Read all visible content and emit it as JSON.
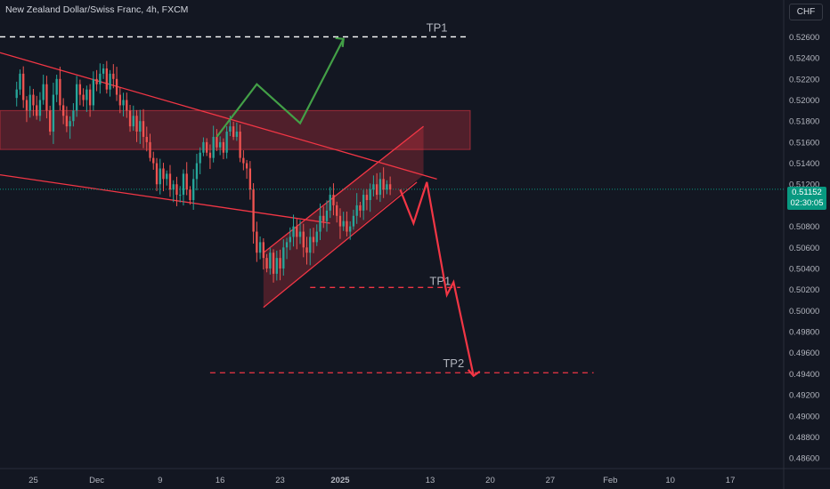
{
  "header": {
    "title": "New Zealand Dollar/Swiss Franc, 4h, FXCM",
    "currency": "CHF"
  },
  "last_price": {
    "value": "0.51152",
    "countdown": "02:30:05"
  },
  "colors": {
    "background": "#131722",
    "up_candle": "#26a69a",
    "down_candle": "#ef5350",
    "annotation_red": "#f23645",
    "annotation_green": "#43a047",
    "last_price_bg": "#089981"
  },
  "chart_data": {
    "type": "candlestick",
    "title": "New Zealand Dollar/Swiss Franc, 4h, FXCM",
    "ylabel": "CHF",
    "ylim": [
      0.485,
      0.5295
    ],
    "y_ticks": [
      "0.52800",
      "0.52600",
      "0.52400",
      "0.52200",
      "0.52000",
      "0.51800",
      "0.51600",
      "0.51400",
      "0.51200",
      "0.51000",
      "0.50800",
      "0.50600",
      "0.50400",
      "0.50200",
      "0.50000",
      "0.49800",
      "0.49600",
      "0.49400",
      "0.49200",
      "0.49000",
      "0.48800",
      "0.48600"
    ],
    "x_ticks": [
      {
        "label": "25",
        "bold": false,
        "idx": 5
      },
      {
        "label": "Dec",
        "bold": false,
        "idx": 24
      },
      {
        "label": "9",
        "bold": false,
        "idx": 43
      },
      {
        "label": "16",
        "bold": false,
        "idx": 61
      },
      {
        "label": "23",
        "bold": false,
        "idx": 79
      },
      {
        "label": "2025",
        "bold": true,
        "idx": 97
      },
      {
        "label": "13",
        "bold": false,
        "idx": 124
      },
      {
        "label": "20",
        "bold": false,
        "idx": 142
      },
      {
        "label": "27",
        "bold": false,
        "idx": 160
      },
      {
        "label": "Feb",
        "bold": false,
        "idx": 178
      },
      {
        "label": "10",
        "bold": false,
        "idx": 196
      },
      {
        "label": "17",
        "bold": false,
        "idx": 214
      }
    ],
    "x_range": [
      -5,
      230
    ],
    "close_series": [
      0.521,
      0.5225,
      0.52,
      0.519,
      0.5205,
      0.5195,
      0.5185,
      0.52,
      0.5215,
      0.519,
      0.517,
      0.5205,
      0.522,
      0.5195,
      0.5185,
      0.5175,
      0.518,
      0.519,
      0.5215,
      0.5205,
      0.52,
      0.521,
      0.5195,
      0.522,
      0.5215,
      0.5225,
      0.523,
      0.521,
      0.5225,
      0.522,
      0.5205,
      0.5195,
      0.52,
      0.519,
      0.5175,
      0.5185,
      0.517,
      0.518,
      0.5165,
      0.516,
      0.5145,
      0.514,
      0.512,
      0.5135,
      0.5125,
      0.513,
      0.5115,
      0.512,
      0.511,
      0.511,
      0.513,
      0.5115,
      0.5105,
      0.5125,
      0.514,
      0.515,
      0.516,
      0.515,
      0.5145,
      0.5165,
      0.5155,
      0.516,
      0.515,
      0.517,
      0.5175,
      0.5165,
      0.517,
      0.5145,
      0.514,
      0.5135,
      0.5115,
      0.5075,
      0.5055,
      0.5065,
      0.505,
      0.504,
      0.5055,
      0.5035,
      0.505,
      0.504,
      0.506,
      0.5065,
      0.507,
      0.508,
      0.507,
      0.5075,
      0.506,
      0.5055,
      0.507,
      0.5065,
      0.5075,
      0.509,
      0.5085,
      0.5095,
      0.511,
      0.51,
      0.509,
      0.508,
      0.5085,
      0.5075,
      0.508,
      0.509,
      0.51,
      0.5095,
      0.511,
      0.5105,
      0.5115,
      0.512,
      0.511,
      0.5125,
      0.5115,
      0.512,
      0.5115
    ],
    "levels": [
      {
        "label": "TP1",
        "price": 0.526,
        "style": "dashed",
        "color": "#ffffff"
      },
      {
        "label": "TP1",
        "price": 0.5022,
        "style": "dashed",
        "color": "#f23645"
      },
      {
        "label": "TP2",
        "price": 0.4941,
        "style": "dashed",
        "color": "#f23645"
      }
    ],
    "zones": [
      {
        "name": "resistance-zone",
        "price_top": 0.519,
        "price_bottom": 0.5153
      }
    ],
    "last_price": 0.51152,
    "grid": false,
    "legend": "none"
  }
}
